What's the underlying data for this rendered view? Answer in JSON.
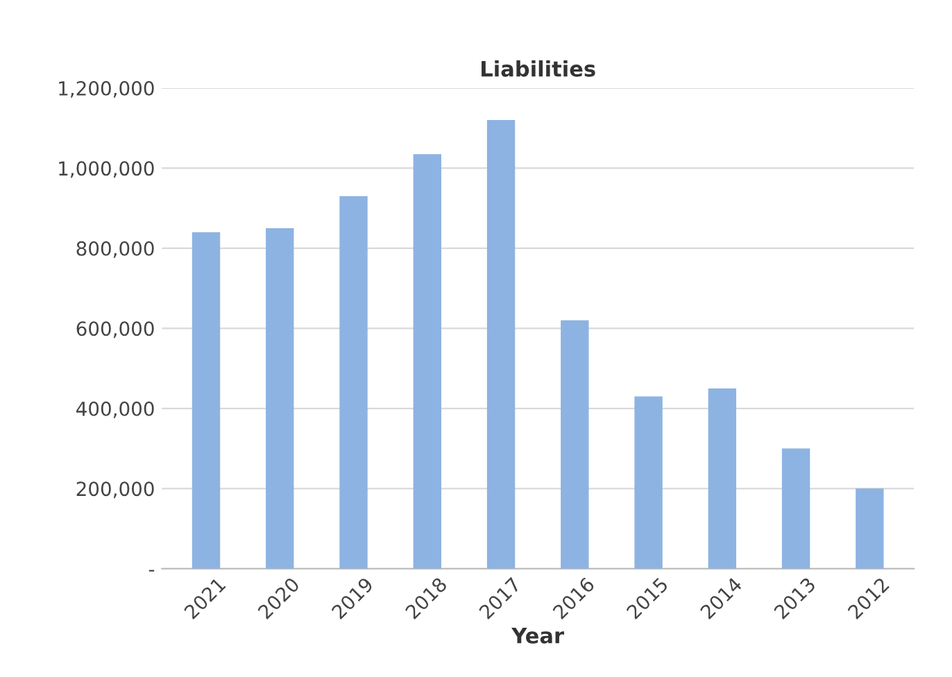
{
  "chart_data": {
    "type": "bar",
    "title": "Liabilities",
    "xlabel": "Year",
    "categories": [
      "2021",
      "2020",
      "2019",
      "2018",
      "2017",
      "2016",
      "2015",
      "2014",
      "2013",
      "2012"
    ],
    "values": [
      840000,
      850000,
      930000,
      1035000,
      1120000,
      620000,
      430000,
      450000,
      300000,
      200000
    ],
    "color": "#8db3e2",
    "ylim": [
      0,
      1200000
    ],
    "yticks": [
      {
        "value": 0,
        "label": "-"
      },
      {
        "value": 200000,
        "label": "200,000"
      },
      {
        "value": 400000,
        "label": "400,000"
      },
      {
        "value": 600000,
        "label": "600,000"
      },
      {
        "value": 800000,
        "label": "800,000"
      },
      {
        "value": 1000000,
        "label": "1,000,000"
      },
      {
        "value": 1200000,
        "label": "1,200,000"
      }
    ],
    "grid": "y",
    "legend": false
  }
}
